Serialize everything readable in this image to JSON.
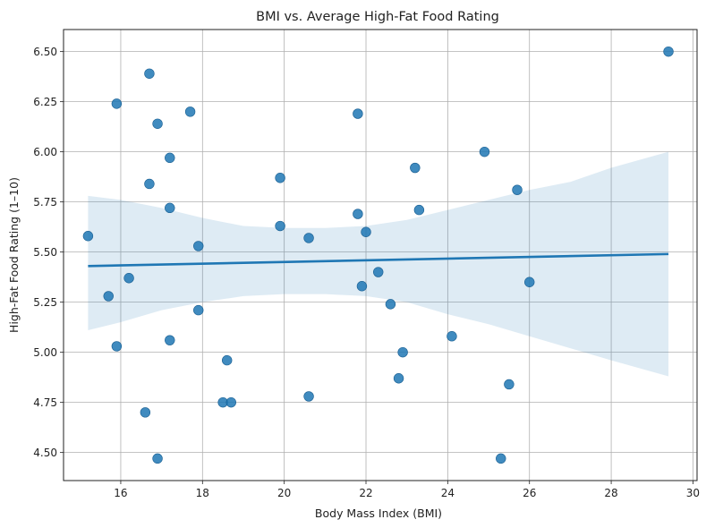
{
  "chart_data": {
    "type": "scatter",
    "title": "BMI vs. Average High-Fat Food Rating",
    "xlabel": "Body Mass Index (BMI)",
    "ylabel": "High-Fat Food Rating (1–10)",
    "xlim": [
      14.6,
      30.1
    ],
    "ylim": [
      4.36,
      6.61
    ],
    "x_ticks": [
      16,
      18,
      20,
      22,
      24,
      26,
      28,
      30
    ],
    "y_ticks": [
      4.5,
      4.75,
      5.0,
      5.25,
      5.5,
      5.75,
      6.0,
      6.25,
      6.5
    ],
    "grid": true,
    "colors": {
      "points": "#1f77b4",
      "band": "#1f77b4",
      "line": "#1f77b4"
    },
    "points": [
      [
        15.2,
        5.58
      ],
      [
        15.7,
        5.28
      ],
      [
        15.9,
        6.24
      ],
      [
        15.9,
        5.03
      ],
      [
        16.2,
        5.37
      ],
      [
        16.6,
        4.7
      ],
      [
        16.7,
        6.39
      ],
      [
        16.7,
        5.84
      ],
      [
        16.9,
        6.14
      ],
      [
        16.9,
        4.47
      ],
      [
        17.2,
        5.97
      ],
      [
        17.2,
        5.72
      ],
      [
        17.2,
        5.06
      ],
      [
        17.7,
        6.2
      ],
      [
        17.9,
        5.53
      ],
      [
        17.9,
        5.21
      ],
      [
        18.5,
        4.75
      ],
      [
        18.6,
        4.96
      ],
      [
        18.7,
        4.75
      ],
      [
        19.9,
        5.87
      ],
      [
        19.9,
        5.63
      ],
      [
        20.6,
        5.57
      ],
      [
        20.6,
        4.78
      ],
      [
        21.8,
        6.19
      ],
      [
        21.8,
        5.69
      ],
      [
        21.9,
        5.33
      ],
      [
        22.0,
        5.6
      ],
      [
        22.3,
        5.4
      ],
      [
        22.6,
        5.24
      ],
      [
        22.8,
        4.87
      ],
      [
        22.9,
        5.0
      ],
      [
        23.2,
        5.92
      ],
      [
        23.3,
        5.71
      ],
      [
        24.1,
        5.08
      ],
      [
        24.9,
        6.0
      ],
      [
        25.3,
        4.47
      ],
      [
        25.5,
        4.84
      ],
      [
        25.7,
        5.81
      ],
      [
        26.0,
        5.35
      ],
      [
        29.4,
        6.5
      ]
    ],
    "regression": {
      "line": [
        [
          15.2,
          5.43
        ],
        [
          29.4,
          5.49
        ]
      ],
      "ci_upper": [
        [
          15.2,
          5.78
        ],
        [
          16.0,
          5.76
        ],
        [
          17.0,
          5.72
        ],
        [
          18.0,
          5.67
        ],
        [
          19.0,
          5.63
        ],
        [
          20.0,
          5.62
        ],
        [
          21.0,
          5.62
        ],
        [
          22.0,
          5.63
        ],
        [
          23.0,
          5.66
        ],
        [
          24.0,
          5.71
        ],
        [
          25.0,
          5.76
        ],
        [
          26.0,
          5.81
        ],
        [
          27.0,
          5.85
        ],
        [
          28.0,
          5.92
        ],
        [
          29.4,
          6.0
        ]
      ],
      "ci_lower": [
        [
          15.2,
          5.11
        ],
        [
          16.0,
          5.15
        ],
        [
          17.0,
          5.21
        ],
        [
          18.0,
          5.25
        ],
        [
          19.0,
          5.28
        ],
        [
          20.0,
          5.29
        ],
        [
          21.0,
          5.29
        ],
        [
          22.0,
          5.28
        ],
        [
          23.0,
          5.25
        ],
        [
          24.0,
          5.19
        ],
        [
          25.0,
          5.14
        ],
        [
          26.0,
          5.08
        ],
        [
          27.0,
          5.02
        ],
        [
          28.0,
          4.96
        ],
        [
          29.4,
          4.88
        ]
      ]
    }
  }
}
